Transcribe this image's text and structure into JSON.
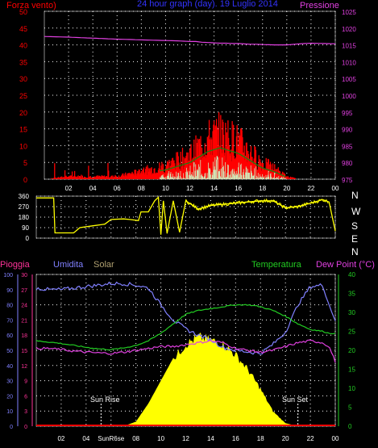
{
  "title": "24 hour graph (day). 19 Luglio 2014",
  "panel_wind_pressure": {
    "left_label": "Forza vento)",
    "right_label": "Pressione",
    "left_ticks": [
      0,
      5,
      10,
      15,
      20,
      25,
      30,
      35,
      40,
      45,
      50
    ],
    "right_ticks": [
      975,
      980,
      985,
      990,
      995,
      1000,
      1005,
      1010,
      1015,
      1020,
      1025
    ]
  },
  "panel_direction": {
    "left_ticks": [
      0,
      90,
      180,
      270,
      360
    ],
    "compass": [
      "N",
      "W",
      "S",
      "E",
      "N"
    ]
  },
  "panel_weather": {
    "labels": {
      "rain": "Pioggia",
      "humidity": "Umidita",
      "solar": "Solar",
      "temperature": "Temperatura",
      "dewpoint": "Dew Point (°C)"
    },
    "rain_ticks": [
      0,
      3,
      6,
      9,
      12,
      15,
      18,
      21,
      24,
      27,
      30
    ],
    "humidity_ticks": [
      0,
      10,
      20,
      30,
      40,
      50,
      60,
      70,
      80,
      90,
      100
    ],
    "temp_ticks": [
      0,
      5,
      10,
      15,
      20,
      25,
      30,
      35,
      40
    ],
    "sun_rise_label": "Sun Rise",
    "sun_set_label": "Sun Set"
  },
  "x_ticks": [
    "02",
    "04",
    "06",
    "08",
    "10",
    "12",
    "14",
    "16",
    "18",
    "20",
    "22",
    "00"
  ],
  "x_tick_sunrise_overlap": "SunR6se",
  "colors": {
    "background": "#000000",
    "red": "#ff0000",
    "magenta": "#e040e0",
    "blue": "#8080ff",
    "tan": "#b0a070",
    "green": "#22cc22",
    "pink": "#ff3399",
    "yellow": "#ffff00",
    "white": "#ffffff",
    "lightgreen": "#ccffcc",
    "darkgreen": "#118811"
  },
  "chart_data": [
    {
      "type": "area",
      "panel": "wind-pressure",
      "xlabel": "",
      "ylim_left": [
        0,
        50
      ],
      "ylim_right": [
        975,
        1025
      ],
      "grid": true,
      "x_hours": [
        0,
        2,
        4,
        6,
        8,
        10,
        11,
        12,
        12.5,
        13,
        13.5,
        14,
        14.5,
        15,
        15.5,
        16,
        16.5,
        17,
        17.5,
        18,
        19,
        20,
        21,
        22,
        24
      ],
      "series": [
        {
          "name": "Pressione",
          "axis": "right",
          "values": [
            1017.5,
            1017.3,
            1017,
            1016.7,
            1016.5,
            1016.3,
            1016.2,
            1016,
            1016,
            1015.8,
            1015.7,
            1015.6,
            1015.5,
            1015.5,
            1015.4,
            1015.4,
            1015.3,
            1015.2,
            1015.2,
            1015.1,
            1015,
            1015,
            1015.3,
            1015.5,
            1015.3
          ]
        },
        {
          "name": "Forza vento)",
          "axis": "left",
          "values": [
            0,
            1,
            1,
            1,
            3,
            5,
            7,
            9,
            11,
            13,
            15,
            16,
            17,
            16,
            15,
            14,
            12,
            10,
            8,
            6,
            4,
            1,
            0,
            0,
            0
          ]
        }
      ]
    },
    {
      "type": "scatter",
      "panel": "direction",
      "ylim": [
        0,
        360
      ],
      "grid": true,
      "x_hours": [
        0,
        1.4,
        1.5,
        3,
        3.5,
        4.5,
        5.5,
        6,
        7,
        7.5,
        8.2,
        8.4,
        9,
        9.5,
        9.8,
        10,
        10.2,
        10.5,
        11,
        11.5,
        12,
        13,
        14,
        15,
        16,
        17,
        18,
        19,
        20,
        21,
        22,
        23,
        23.5,
        24
      ],
      "values": [
        345,
        345,
        45,
        45,
        90,
        105,
        120,
        160,
        165,
        160,
        150,
        225,
        225,
        320,
        350,
        30,
        320,
        40,
        320,
        50,
        320,
        250,
        280,
        290,
        300,
        310,
        320,
        320,
        260,
        270,
        300,
        330,
        310,
        60
      ]
    },
    {
      "type": "line",
      "panel": "weather",
      "ylim_temp": [
        0,
        40
      ],
      "ylim_humidity": [
        0,
        100
      ],
      "grid": true,
      "x_hours": [
        0,
        1,
        2,
        3,
        4,
        5,
        6,
        7,
        8,
        9,
        10,
        11,
        12,
        13,
        14,
        15,
        16,
        17,
        18,
        19,
        20,
        21,
        22,
        23,
        23.5,
        24
      ],
      "series": [
        {
          "name": "Temperatura",
          "axis": "temp",
          "values": [
            22.5,
            22.2,
            21.8,
            21.3,
            20.8,
            20.4,
            20.2,
            20.6,
            21.3,
            22.5,
            24.5,
            27,
            29.5,
            30.5,
            31,
            31.5,
            32,
            32,
            31.5,
            30.5,
            29,
            27,
            25.5,
            25,
            24.5,
            24.5
          ]
        },
        {
          "name": "Dew Point (°C)",
          "axis": "temp",
          "values": [
            20.5,
            20.5,
            20.2,
            19.8,
            19.5,
            19.3,
            19.2,
            19.5,
            20,
            20.5,
            21,
            21,
            21.5,
            22,
            22.5,
            22,
            20.5,
            20,
            19.5,
            20,
            21,
            22,
            22.5,
            22,
            21,
            17
          ]
        },
        {
          "name": "Umidita",
          "axis": "humidity",
          "values": [
            91,
            90,
            90,
            91,
            92,
            93,
            94,
            94,
            93,
            91,
            80,
            70,
            64,
            60,
            57,
            52,
            50,
            49,
            48,
            54,
            62,
            80,
            92,
            93,
            80,
            70
          ]
        },
        {
          "name": "Solar",
          "axis": "humidity",
          "values": [
            0,
            0,
            0,
            0,
            0,
            0,
            0,
            0,
            3,
            15,
            30,
            45,
            55,
            60,
            58,
            55,
            48,
            38,
            25,
            10,
            2,
            0,
            0,
            0,
            0,
            0
          ]
        }
      ],
      "sun_rise_hour": 5.2,
      "sun_set_hour": 21
    }
  ]
}
